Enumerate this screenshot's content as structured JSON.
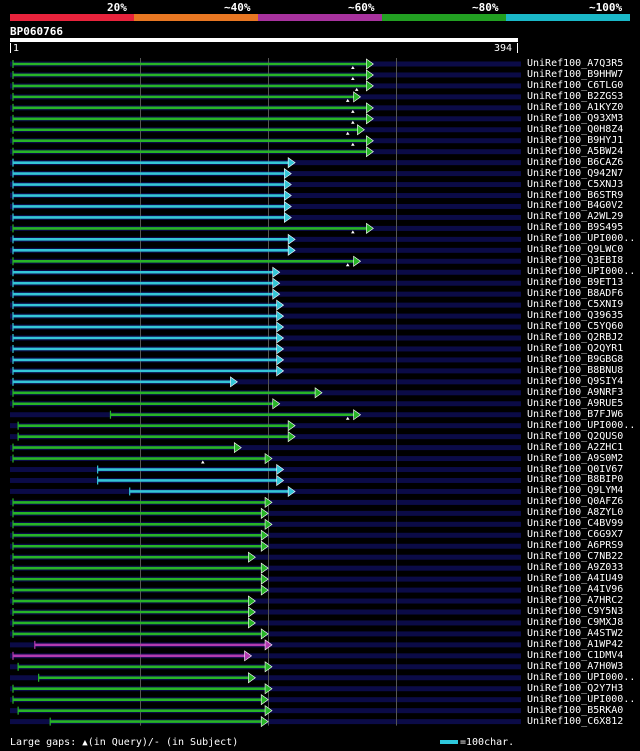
{
  "scale": {
    "segments": [
      {
        "label": "20%",
        "color": "#e8233c"
      },
      {
        "label": "~40%",
        "color": "#e87722"
      },
      {
        "label": "~60%",
        "color": "#a8329e"
      },
      {
        "label": "~80%",
        "color": "#22a022"
      },
      {
        "label": "~100%",
        "color": "#1ab8c8"
      }
    ]
  },
  "query": {
    "name": "BP060766",
    "start_label": "1",
    "end_label": "394",
    "length": 394
  },
  "colors": {
    "green": "#27b427",
    "cyan": "#34c6d8",
    "magenta": "#b23ab0",
    "row_bg": "#0b0b47",
    "grid": "#555555"
  },
  "gridlines": [
    100,
    200,
    300
  ],
  "hits": [
    {
      "name": "UniRef100_A7Q3R5",
      "start": 1,
      "end": 282,
      "color": "green",
      "marks": [
        266
      ]
    },
    {
      "name": "UniRef100_B9HHW7",
      "start": 1,
      "end": 282,
      "color": "green",
      "marks": [
        266
      ]
    },
    {
      "name": "UniRef100_C6TLG0",
      "start": 1,
      "end": 282,
      "color": "green",
      "marks": [
        269
      ]
    },
    {
      "name": "UniRef100_B2ZGS3",
      "start": 1,
      "end": 272,
      "color": "green",
      "marks": [
        262
      ]
    },
    {
      "name": "UniRef100_A1KYZ0",
      "start": 1,
      "end": 282,
      "color": "green",
      "marks": [
        266
      ]
    },
    {
      "name": "UniRef100_Q93XM3",
      "start": 1,
      "end": 282,
      "color": "green",
      "marks": [
        266
      ]
    },
    {
      "name": "UniRef100_Q0H8Z4",
      "start": 1,
      "end": 275,
      "color": "green",
      "marks": [
        262
      ]
    },
    {
      "name": "UniRef100_B9HYJ1",
      "start": 1,
      "end": 282,
      "color": "green",
      "marks": [
        266
      ]
    },
    {
      "name": "UniRef100_A5BW24",
      "start": 1,
      "end": 282,
      "color": "green",
      "marks": []
    },
    {
      "name": "UniRef100_B6CAZ6",
      "start": 1,
      "end": 221,
      "color": "cyan",
      "marks": []
    },
    {
      "name": "UniRef100_Q942N7",
      "start": 1,
      "end": 218,
      "color": "cyan",
      "marks": []
    },
    {
      "name": "UniRef100_C5XNJ3",
      "start": 1,
      "end": 218,
      "color": "cyan",
      "marks": []
    },
    {
      "name": "UniRef100_B6STR9",
      "start": 1,
      "end": 218,
      "color": "cyan",
      "marks": []
    },
    {
      "name": "UniRef100_B4G0V2",
      "start": 1,
      "end": 218,
      "color": "cyan",
      "marks": []
    },
    {
      "name": "UniRef100_A2WL29",
      "start": 1,
      "end": 218,
      "color": "cyan",
      "marks": []
    },
    {
      "name": "UniRef100_B9S495",
      "start": 1,
      "end": 282,
      "color": "green",
      "marks": [
        266
      ]
    },
    {
      "name": "UniRef100_UPI000..",
      "start": 1,
      "end": 221,
      "color": "cyan",
      "marks": []
    },
    {
      "name": "UniRef100_Q9LWC0",
      "start": 1,
      "end": 221,
      "color": "cyan",
      "marks": []
    },
    {
      "name": "UniRef100_Q3EBI8",
      "start": 1,
      "end": 272,
      "color": "green",
      "marks": [
        262
      ]
    },
    {
      "name": "UniRef100_UPI000..",
      "start": 1,
      "end": 209,
      "color": "cyan",
      "marks": []
    },
    {
      "name": "UniRef100_B9ET13",
      "start": 1,
      "end": 209,
      "color": "cyan",
      "marks": []
    },
    {
      "name": "UniRef100_B8ADF6",
      "start": 1,
      "end": 209,
      "color": "cyan",
      "marks": []
    },
    {
      "name": "UniRef100_C5XNI9",
      "start": 1,
      "end": 212,
      "color": "cyan",
      "marks": []
    },
    {
      "name": "UniRef100_Q39635",
      "start": 1,
      "end": 212,
      "color": "cyan",
      "marks": []
    },
    {
      "name": "UniRef100_C5YQ60",
      "start": 1,
      "end": 212,
      "color": "cyan",
      "marks": []
    },
    {
      "name": "UniRef100_Q2RBJ2",
      "start": 1,
      "end": 212,
      "color": "cyan",
      "marks": []
    },
    {
      "name": "UniRef100_Q2QYR1",
      "start": 1,
      "end": 212,
      "color": "cyan",
      "marks": []
    },
    {
      "name": "UniRef100_B9GBG8",
      "start": 1,
      "end": 212,
      "color": "cyan",
      "marks": []
    },
    {
      "name": "UniRef100_B8BNU8",
      "start": 1,
      "end": 212,
      "color": "cyan",
      "marks": []
    },
    {
      "name": "UniRef100_Q9SIY4",
      "start": 1,
      "end": 176,
      "color": "cyan",
      "marks": []
    },
    {
      "name": "UniRef100_A9NRF3",
      "start": 1,
      "end": 242,
      "color": "green",
      "marks": []
    },
    {
      "name": "UniRef100_A9RUE5",
      "start": 1,
      "end": 209,
      "color": "green",
      "marks": []
    },
    {
      "name": "UniRef100_B7FJW6",
      "start": 77,
      "end": 272,
      "color": "green",
      "marks": [
        262
      ]
    },
    {
      "name": "UniRef100_UPI000..",
      "start": 5,
      "end": 221,
      "color": "green",
      "marks": []
    },
    {
      "name": "UniRef100_Q2QUS0",
      "start": 5,
      "end": 221,
      "color": "green",
      "marks": []
    },
    {
      "name": "UniRef100_A2ZHC1",
      "start": 1,
      "end": 179,
      "color": "green",
      "marks": []
    },
    {
      "name": "UniRef100_A9S0M2",
      "start": 1,
      "end": 203,
      "color": "green",
      "marks": [
        149
      ]
    },
    {
      "name": "UniRef100_Q0IV67",
      "start": 67,
      "end": 212,
      "color": "cyan",
      "marks": []
    },
    {
      "name": "UniRef100_B8BIP0",
      "start": 67,
      "end": 212,
      "color": "cyan",
      "marks": []
    },
    {
      "name": "UniRef100_Q9LYM4",
      "start": 92,
      "end": 221,
      "color": "cyan",
      "marks": []
    },
    {
      "name": "UniRef100_Q0AFZ6",
      "start": 1,
      "end": 203,
      "color": "green",
      "marks": []
    },
    {
      "name": "UniRef100_A8ZYL0",
      "start": 1,
      "end": 200,
      "color": "green",
      "marks": []
    },
    {
      "name": "UniRef100_C4BV99",
      "start": 1,
      "end": 203,
      "color": "green",
      "marks": []
    },
    {
      "name": "UniRef100_C6G9X7",
      "start": 1,
      "end": 200,
      "color": "green",
      "marks": []
    },
    {
      "name": "UniRef100_A6PRS9",
      "start": 1,
      "end": 200,
      "color": "green",
      "marks": []
    },
    {
      "name": "UniRef100_C7NB22",
      "start": 1,
      "end": 190,
      "color": "green",
      "marks": []
    },
    {
      "name": "UniRef100_A9Z033",
      "start": 1,
      "end": 200,
      "color": "green",
      "marks": []
    },
    {
      "name": "UniRef100_A4IU49",
      "start": 1,
      "end": 200,
      "color": "green",
      "marks": []
    },
    {
      "name": "UniRef100_A4IV96",
      "start": 1,
      "end": 200,
      "color": "green",
      "marks": []
    },
    {
      "name": "UniRef100_A7HRC2",
      "start": 1,
      "end": 190,
      "color": "green",
      "marks": []
    },
    {
      "name": "UniRef100_C9Y5N3",
      "start": 1,
      "end": 190,
      "color": "green",
      "marks": []
    },
    {
      "name": "UniRef100_C9MXJ8",
      "start": 1,
      "end": 190,
      "color": "green",
      "marks": []
    },
    {
      "name": "UniRef100_A4STW2",
      "start": 1,
      "end": 200,
      "color": "green",
      "marks": []
    },
    {
      "name": "UniRef100_A1WP42",
      "start": 18,
      "end": 203,
      "color": "magenta",
      "marks": []
    },
    {
      "name": "UniRef100_C1DMV4",
      "start": 1,
      "end": 187,
      "color": "magenta",
      "marks": []
    },
    {
      "name": "UniRef100_A7H0W3",
      "start": 5,
      "end": 203,
      "color": "green",
      "marks": []
    },
    {
      "name": "UniRef100_UPI000..",
      "start": 21,
      "end": 190,
      "color": "green",
      "marks": []
    },
    {
      "name": "UniRef100_Q2Y7H3",
      "start": 1,
      "end": 203,
      "color": "green",
      "marks": []
    },
    {
      "name": "UniRef100_UPI000..",
      "start": 1,
      "end": 200,
      "color": "green",
      "marks": []
    },
    {
      "name": "UniRef100_B5RKA0",
      "start": 5,
      "end": 203,
      "color": "green",
      "marks": []
    },
    {
      "name": "UniRef100_C6X812",
      "start": 30,
      "end": 200,
      "color": "green",
      "marks": []
    }
  ],
  "legend": {
    "gaps_prefix": "Large gaps:",
    "gaps_query": "(in Query)/",
    "gaps_subject": "- (in Subject)",
    "scale_text": "=100char."
  }
}
